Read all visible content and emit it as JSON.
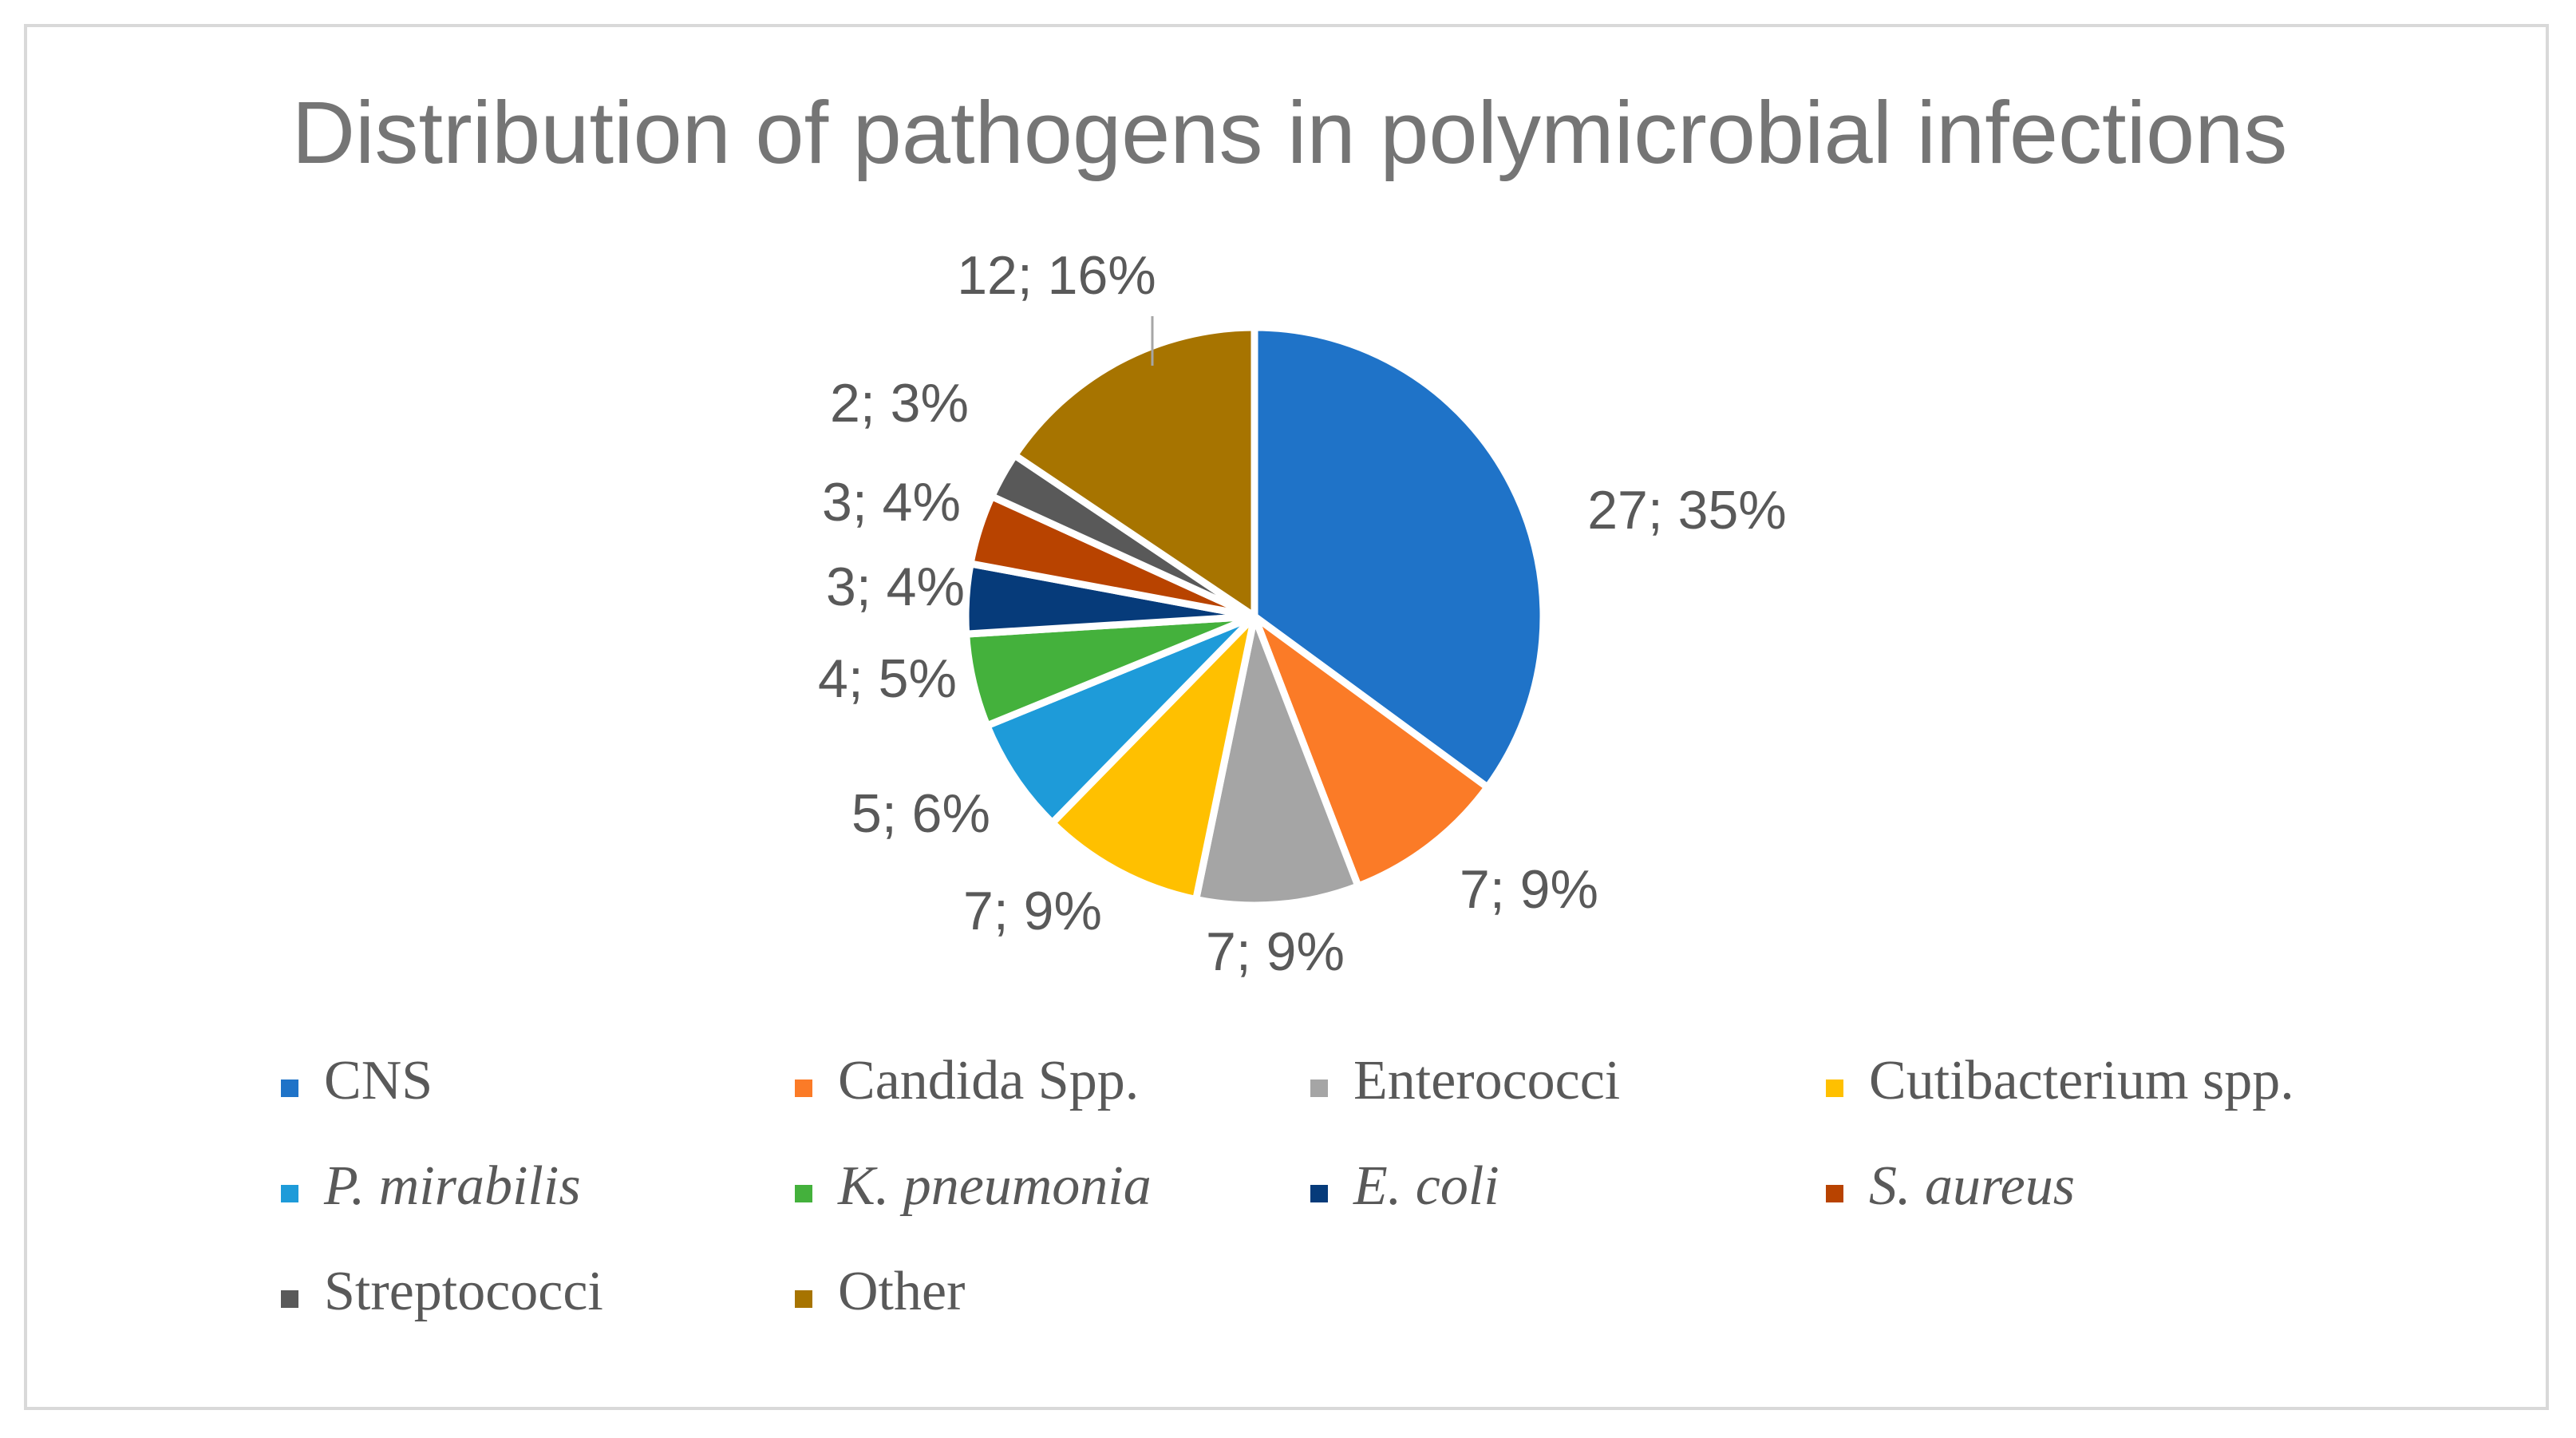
{
  "chart_data": {
    "type": "pie",
    "title": "Distribution of pathogens in polymicrobial infections",
    "legend_position": "bottom",
    "slices": [
      {
        "name": "CNS",
        "value": 27,
        "label": "27; 35%",
        "color": "#1f73c8",
        "italic": false
      },
      {
        "name": "Candida Spp.",
        "value": 7,
        "label": "7; 9%",
        "color": "#fb7b27",
        "italic": false
      },
      {
        "name": "Enterococci",
        "value": 7,
        "label": "7; 9%",
        "color": "#a5a5a5",
        "italic": false
      },
      {
        "name": "Cutibacterium spp.",
        "value": 7,
        "label": "7; 9%",
        "color": "#ffc000",
        "italic": false
      },
      {
        "name": "P. mirabilis",
        "value": 5,
        "label": "5; 6%",
        "color": "#1e9bd9",
        "italic": true
      },
      {
        "name": "K. pneumonia",
        "value": 4,
        "label": "4; 5%",
        "color": "#44b13c",
        "italic": true
      },
      {
        "name": "E. coli",
        "value": 3,
        "label": "3; 4%",
        "color": "#063b7a",
        "italic": true
      },
      {
        "name": "S. aureus",
        "value": 3,
        "label": "3; 4%",
        "color": "#b84300",
        "italic": true
      },
      {
        "name": "Streptococci",
        "value": 2,
        "label": "2; 3%",
        "color": "#595959",
        "italic": false
      },
      {
        "name": "Other",
        "value": 12,
        "label": "12; 16%",
        "color": "#a77400",
        "italic": false
      }
    ]
  }
}
